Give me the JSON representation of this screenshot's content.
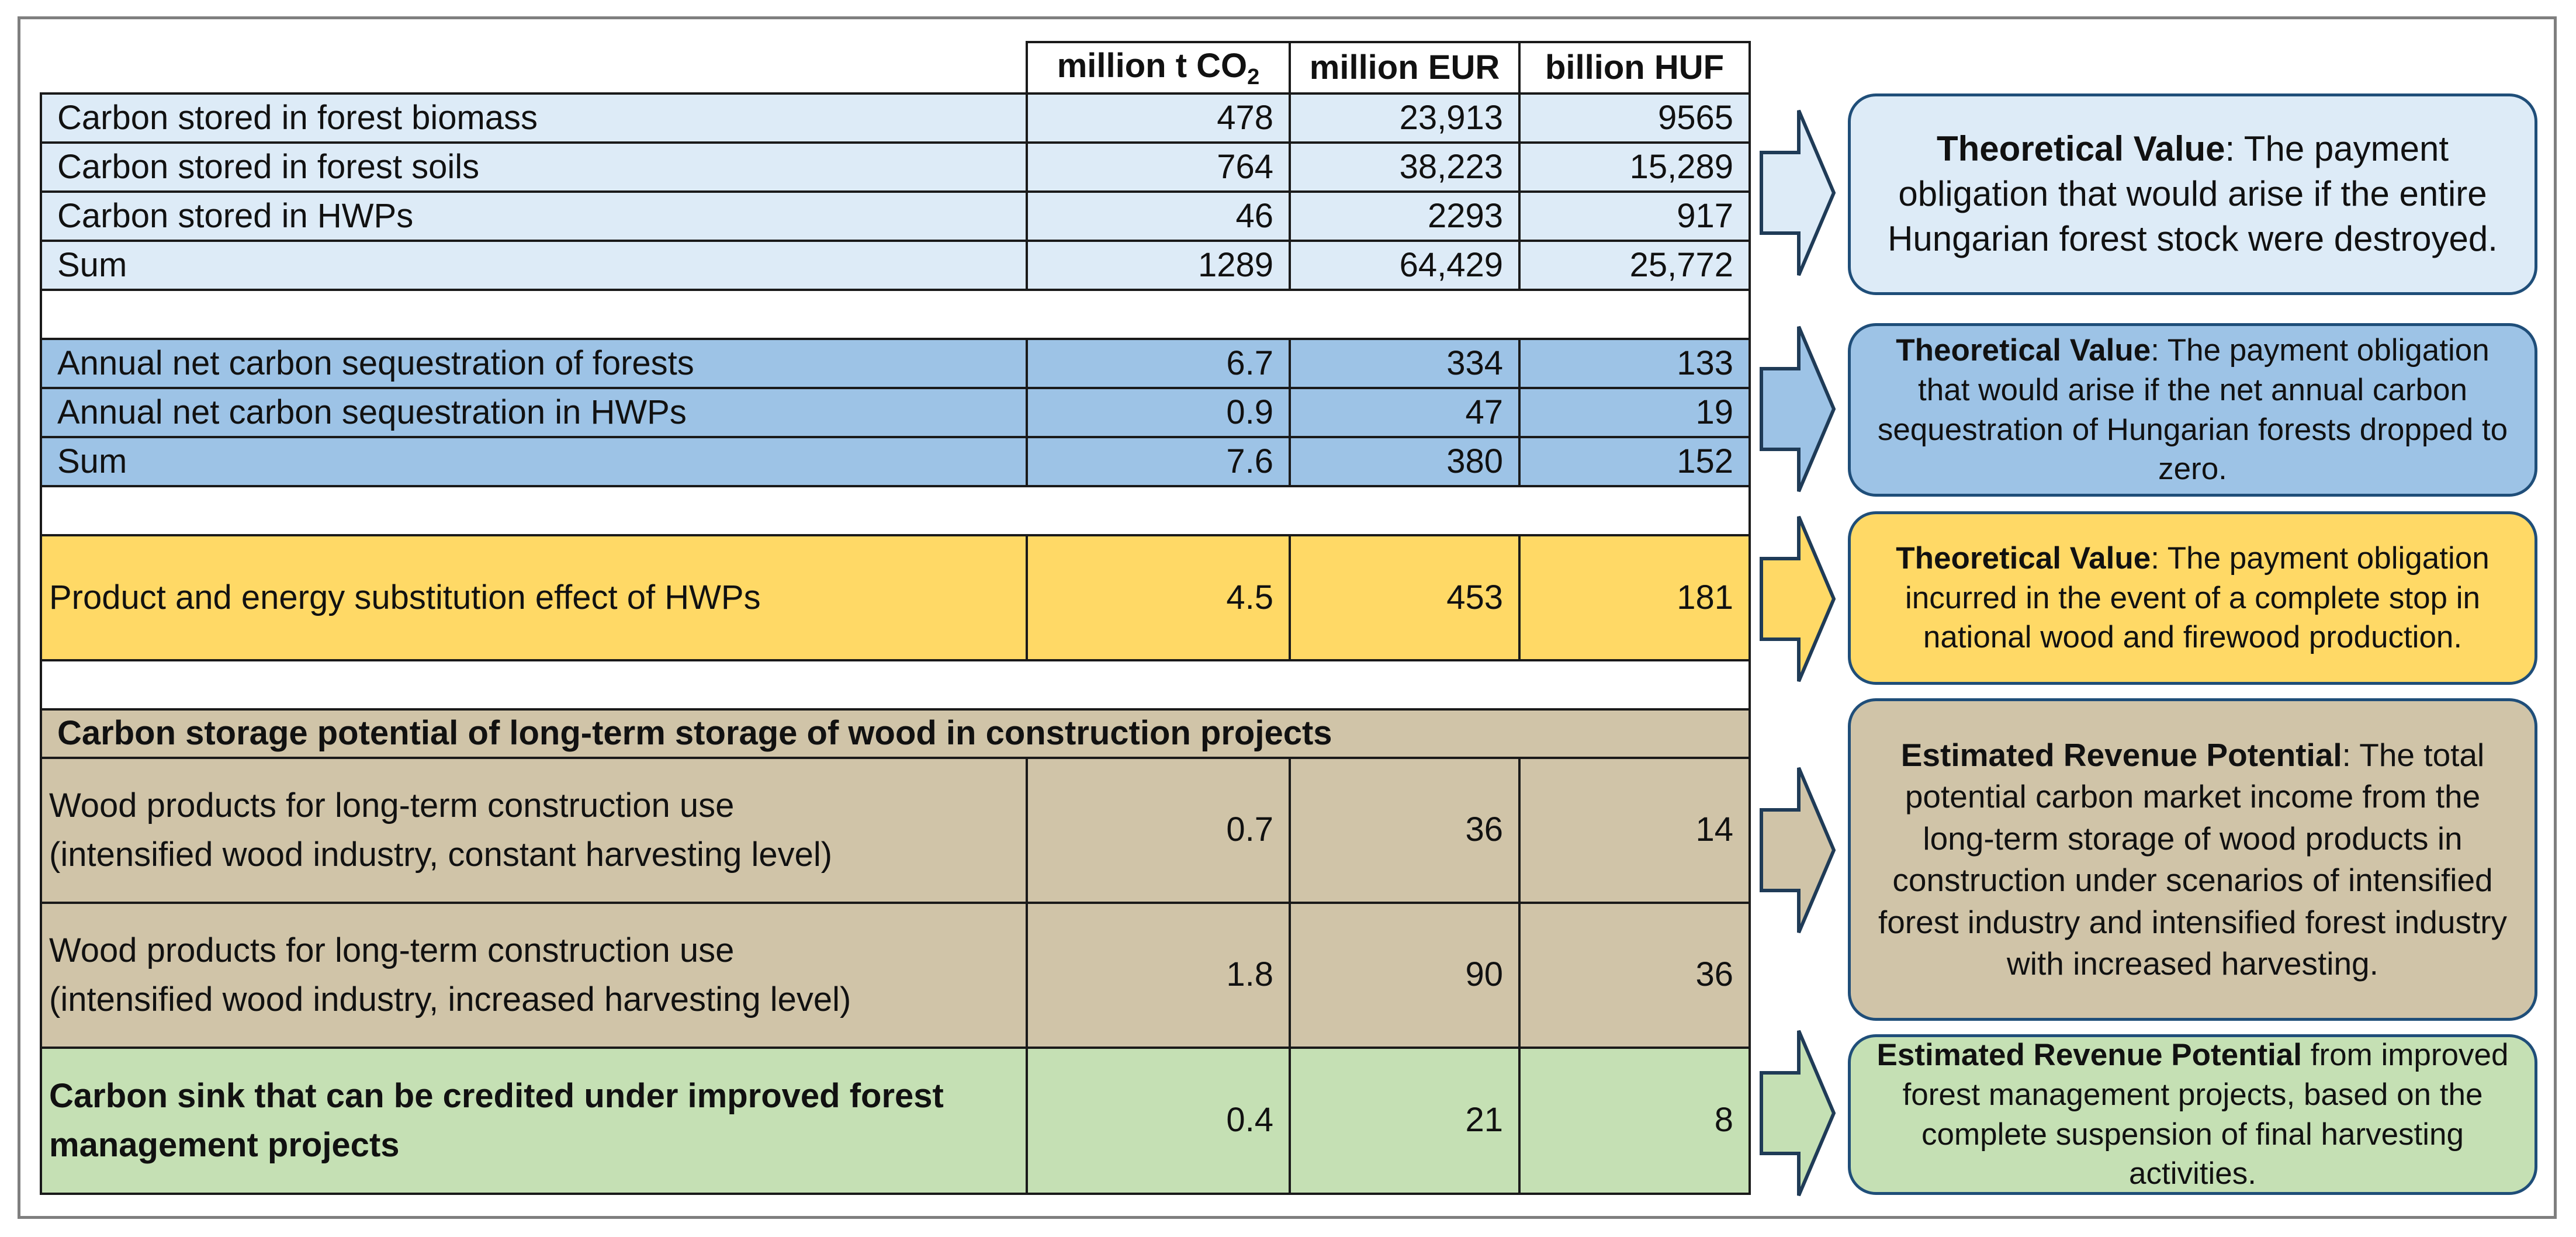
{
  "table": {
    "header": {
      "col1": "million t CO",
      "col1_sub": "2",
      "col2": "million EUR",
      "col3": "billion HUF"
    },
    "stock_rows": [
      {
        "label": "Carbon stored in forest biomass",
        "co2": "478",
        "eur": "23,913",
        "huf": "9565"
      },
      {
        "label": "Carbon stored in forest soils",
        "co2": "764",
        "eur": "38,223",
        "huf": "15,289"
      },
      {
        "label": "Carbon stored in HWPs",
        "co2": "46",
        "eur": "2293",
        "huf": "917"
      },
      {
        "label": "Sum",
        "co2": "1289",
        "eur": "64,429",
        "huf": "25,772"
      }
    ],
    "annual_rows": [
      {
        "label": "Annual net carbon sequestration of forests",
        "co2": "6.7",
        "eur": "334",
        "huf": "133"
      },
      {
        "label": "Annual net carbon sequestration in HWPs",
        "co2": "0.9",
        "eur": "47",
        "huf": "19"
      },
      {
        "label": "Sum",
        "co2": "7.6",
        "eur": "380",
        "huf": "152"
      }
    ],
    "substitution_row": {
      "label": "Product and energy substitution effect of HWPs",
      "co2": "4.5",
      "eur": "453",
      "huf": "181"
    },
    "construction": {
      "title": "Carbon storage potential of long-term storage of wood in construction projects",
      "rows": [
        {
          "label_line1": "Wood products for long-term construction use",
          "label_line2": "(intensified wood industry, constant harvesting level)",
          "co2": "0.7",
          "eur": "36",
          "huf": "14"
        },
        {
          "label_line1": "Wood products for long-term construction use",
          "label_line2": "(intensified wood industry, increased harvesting level)",
          "co2": "1.8",
          "eur": "90",
          "huf": "36"
        }
      ]
    },
    "improved_row": {
      "label_line1": "Carbon sink that can be credited under improved forest",
      "label_line2": "management projects",
      "co2": "0.4",
      "eur": "21",
      "huf": "8"
    }
  },
  "boxes": [
    {
      "bold": "Theoretical Value",
      "text": ": The payment obligation that would arise if the entire Hungarian forest stock were destroyed."
    },
    {
      "bold": "Theoretical Value",
      "text": ": The payment obligation that would arise if the net annual carbon sequestration of Hungarian forests dropped to zero."
    },
    {
      "bold": "Theoretical Value",
      "text": ": The payment obligation incurred in the event of a complete stop in national wood and firewood production."
    },
    {
      "bold": "Estimated Revenue Potential",
      "text": ": The total potential carbon market income from the long-term storage of wood products in construction under scenarios of intensified forest industry and intensified forest industry with increased harvesting."
    },
    {
      "bold": "Estimated Revenue Potential",
      "text": " from improved forest management projects, based on the complete suspension of final harvesting activities."
    }
  ],
  "colors": {
    "light_blue": "#ddebf7",
    "mid_blue": "#9dc3e6",
    "yellow": "#ffd966",
    "tan": "#d0c4a8",
    "green": "#c5e0b4",
    "box_border": "#1f4e79"
  }
}
